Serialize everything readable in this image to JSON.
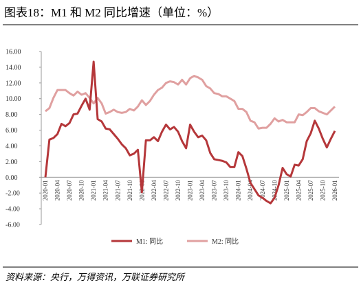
{
  "chart_data": {
    "type": "line",
    "title": "图表18：M1 和 M2 同比增速（单位：%）",
    "source": "资料来源：央行，万得资讯，万联证券研究所",
    "x": [
      "2020-01",
      "2020-02",
      "2020-03",
      "2020-04",
      "2020-05",
      "2020-06",
      "2020-07",
      "2020-08",
      "2020-09",
      "2020-10",
      "2020-11",
      "2020-12",
      "2021-01",
      "2021-02",
      "2021-03",
      "2021-04",
      "2021-05",
      "2021-06",
      "2021-07",
      "2021-08",
      "2021-09",
      "2021-10",
      "2021-11",
      "2021-12",
      "2022-01",
      "2022-02",
      "2022-03",
      "2022-04",
      "2022-05",
      "2022-06",
      "2022-07",
      "2022-08",
      "2022-09",
      "2022-10",
      "2022-11",
      "2022-12",
      "2023-01",
      "2023-02",
      "2023-03",
      "2023-04",
      "2023-05",
      "2023-06",
      "2023-07",
      "2023-08",
      "2023-09",
      "2023-10",
      "2023-11",
      "2023-12",
      "2024-01",
      "2024-02",
      "2024-03",
      "2024-04",
      "2024-05",
      "2024-06",
      "2024-07",
      "2024-08",
      "2024-09",
      "2024-10",
      "2024-11",
      "2024-12",
      "2025-01",
      "2025-02",
      "2025-03",
      "2025-04",
      "2025-05",
      "2025-06",
      "2025-07",
      "2025-08",
      "2025-09",
      "2025-10",
      "2025-11",
      "2025-12",
      "2026-01"
    ],
    "xtick_every": 3,
    "series": [
      {
        "name": "M1: 同比",
        "color": "#b5373a",
        "values": [
          0,
          4.8,
          5.0,
          5.5,
          6.8,
          6.5,
          6.9,
          8.0,
          8.1,
          9.1,
          10.0,
          8.6,
          14.7,
          7.4,
          7.1,
          6.2,
          6.1,
          5.5,
          4.9,
          4.2,
          3.7,
          2.8,
          3.0,
          3.5,
          -1.9,
          4.7,
          4.7,
          5.1,
          4.6,
          5.8,
          6.7,
          6.1,
          6.4,
          5.8,
          4.6,
          3.7,
          6.7,
          5.8,
          5.1,
          5.3,
          4.7,
          3.1,
          2.3,
          2.2,
          2.1,
          1.9,
          1.3,
          1.3,
          3.2,
          2.7,
          1.1,
          -0.7,
          -1.5,
          -2.3,
          -2.6,
          -3.0,
          -3.3,
          -2.6,
          -1.0,
          1.2,
          0.4,
          0.1,
          1.6,
          1.5,
          2.3,
          4.6,
          5.6,
          7.2,
          6.2,
          4.9,
          3.8,
          4.9,
          5.9
        ]
      },
      {
        "name": "M2: 同比",
        "color": "#e0a0a0",
        "values": [
          8.4,
          8.8,
          10.1,
          11.1,
          11.1,
          11.1,
          10.7,
          10.4,
          10.9,
          10.5,
          10.7,
          10.1,
          9.4,
          10.1,
          9.4,
          8.1,
          8.3,
          8.6,
          8.3,
          8.2,
          8.3,
          8.7,
          8.5,
          9.0,
          9.8,
          9.2,
          9.7,
          10.5,
          11.1,
          11.4,
          12.0,
          12.2,
          12.1,
          11.8,
          12.4,
          11.8,
          12.6,
          12.9,
          12.7,
          12.4,
          11.6,
          11.3,
          10.7,
          10.6,
          10.3,
          10.3,
          10.0,
          9.7,
          8.7,
          8.7,
          8.3,
          7.2,
          7.0,
          6.2,
          6.3,
          6.3,
          6.8,
          7.5,
          7.1,
          7.3,
          7.0,
          7.0,
          7.0,
          8.0,
          7.9,
          8.3,
          8.8,
          8.8,
          8.4,
          8.2,
          8.0,
          8.5,
          9.0
        ]
      }
    ],
    "ylim": [
      -6,
      16
    ],
    "yticks": [
      {
        "value": -6,
        "label": "-6.00"
      },
      {
        "value": -4,
        "label": "-4.00"
      },
      {
        "value": -2,
        "label": "-2.00"
      },
      {
        "value": 0,
        "label": "0.00"
      },
      {
        "value": 2,
        "label": "2.00"
      },
      {
        "value": 4,
        "label": "4.00"
      },
      {
        "value": 6,
        "label": "6.00"
      },
      {
        "value": 8,
        "label": "8.00"
      },
      {
        "value": 10,
        "label": "10.00"
      },
      {
        "value": 12,
        "label": "12.00"
      },
      {
        "value": 14,
        "label": "14.00"
      },
      {
        "value": 16,
        "label": "16.00"
      }
    ],
    "grid": false,
    "legend": "bottom"
  }
}
